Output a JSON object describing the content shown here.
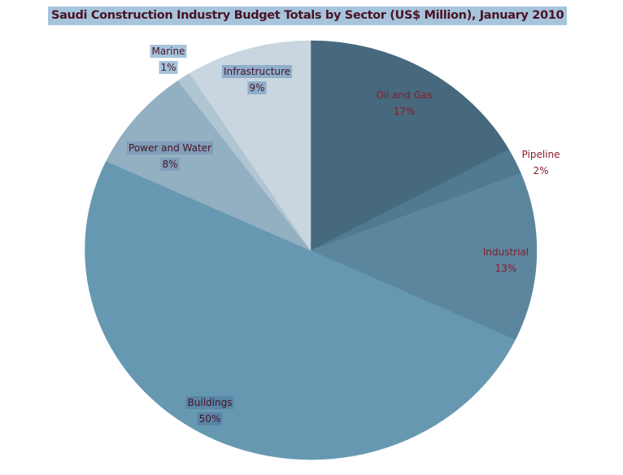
{
  "chart_data": {
    "type": "pie",
    "title": "Saudi Construction Industry Budget Totals by Sector (US$ Million), January 2010",
    "start_angle": "12 o'clock",
    "direction": "clockwise",
    "legend": "none",
    "slices": [
      {
        "label": "Oil and Gas",
        "value": 17,
        "display": "17%",
        "color": "#46697d",
        "label_color": "#8b1a2b",
        "label_bg": null
      },
      {
        "label": "Pipeline",
        "value": 2,
        "display": "2%",
        "color": "#4f7a8f",
        "label_color": "#8b1a2b",
        "label_bg": null
      },
      {
        "label": "Industrial",
        "value": 13,
        "display": "13%",
        "color": "#5b869e",
        "label_color": "#8b1a2b",
        "label_bg": null
      },
      {
        "label": "Buildings",
        "value": 50,
        "display": "50%",
        "color": "#6798b2",
        "label_color": "#4a1325",
        "label_bg": "#5a86a6"
      },
      {
        "label": "Power and Water",
        "value": 8,
        "display": "8%",
        "color": "#93b0c2",
        "label_color": "#4a1325",
        "label_bg": "#7f9fb8"
      },
      {
        "label": "Marine",
        "value": 1,
        "display": "1%",
        "color": "#b0c5d2",
        "label_color": "#4a1325",
        "label_bg": "#a6c4dc"
      },
      {
        "label": "Infrastructure",
        "value": 9,
        "display": "9%",
        "color": "#c9d6df",
        "label_color": "#4a1325",
        "label_bg": "#8faecb"
      }
    ]
  }
}
